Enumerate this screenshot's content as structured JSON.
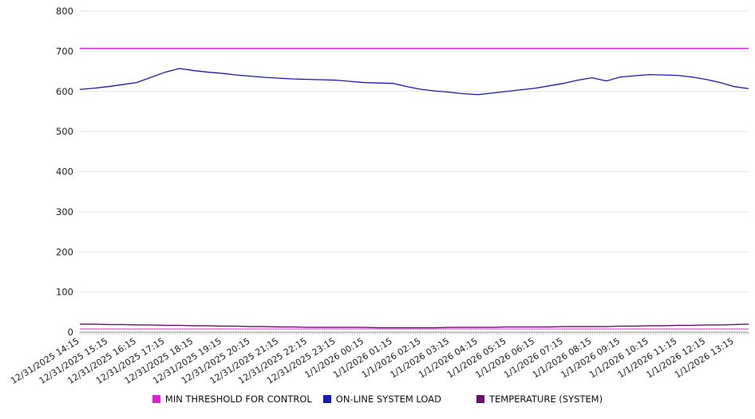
{
  "chart_data": {
    "type": "line",
    "title": "",
    "xlabel": "",
    "ylabel": "",
    "ylim": [
      0,
      800
    ],
    "y_ticks": [
      0,
      100,
      200,
      300,
      400,
      500,
      600,
      700,
      800
    ],
    "grid": "horizontal",
    "legend_position": "bottom",
    "x_tick_labels": [
      "12/31/2025 14:15",
      "12/31/2025 15:15",
      "12/31/2025 16:15",
      "12/31/2025 17:15",
      "12/31/2025 18:15",
      "12/31/2025 19:15",
      "12/31/2025 20:15",
      "12/31/2025 21:15",
      "12/31/2025 22:15",
      "12/31/2025 23:15",
      "1/1/2026 00:15",
      "1/1/2026 01:15",
      "1/1/2026 02:15",
      "1/1/2026 03:15",
      "1/1/2026 04:15",
      "1/1/2026 05:15",
      "1/1/2026 06:15",
      "1/1/2026 07:15",
      "1/1/2026 08:15",
      "1/1/2026 09:15",
      "1/1/2026 10:15",
      "1/1/2026 11:15",
      "1/1/2026 12:15",
      "1/1/2026 13:15"
    ],
    "series": [
      {
        "name": "MIN THRESHOLD FOR CONTROL",
        "color": "#e020d8",
        "style": "flat",
        "value": 707
      },
      {
        "name": "ON-LINE SYSTEM LOAD",
        "color": "#1717c4",
        "values": [
          605,
          608,
          612,
          617,
          622,
          635,
          648,
          657,
          652,
          648,
          645,
          641,
          638,
          635,
          633,
          631,
          630,
          629,
          628,
          625,
          622,
          621,
          620,
          612,
          605,
          601,
          598,
          594,
          592,
          596,
          600,
          604,
          608,
          614,
          620,
          628,
          634,
          626,
          636,
          639,
          642,
          641,
          640,
          636,
          630,
          622,
          612,
          607
        ]
      },
      {
        "name": "TEMPERATURE (SYSTEM)",
        "color": "#6a0f6a",
        "values": [
          20,
          20,
          19,
          19,
          18,
          18,
          17,
          17,
          16,
          16,
          15,
          15,
          14,
          14,
          13,
          13,
          12,
          12,
          12,
          12,
          12,
          11,
          11,
          11,
          11,
          11,
          12,
          12,
          12,
          12,
          13,
          13,
          13,
          13,
          14,
          14,
          14,
          14,
          15,
          15,
          16,
          16,
          17,
          17,
          18,
          18,
          19,
          20
        ]
      }
    ],
    "unlabeled_flat_line": {
      "value": 8,
      "color": "#da2cda"
    }
  }
}
